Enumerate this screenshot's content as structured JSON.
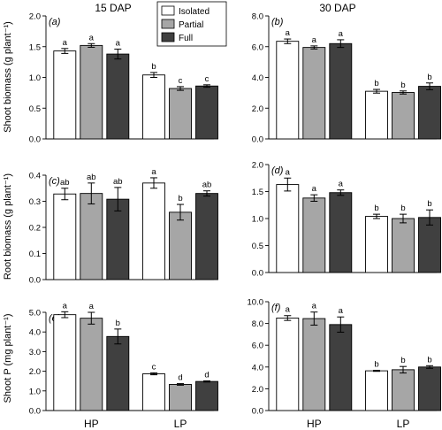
{
  "figure": {
    "col_titles": [
      "15 DAP",
      "30 DAP"
    ],
    "legend": [
      {
        "label": "Isolated",
        "color": "#ffffff"
      },
      {
        "label": "Partial",
        "color": "#a6a6a6"
      },
      {
        "label": "Full",
        "color": "#404040"
      }
    ]
  },
  "chart_data": [
    {
      "type": "bar",
      "panel": "(a)",
      "title": "15 DAP",
      "ylabel": "Shoot biomass (g plant⁻¹)",
      "categories": [
        "HP",
        "LP"
      ],
      "ylim": [
        0,
        2.0
      ],
      "yticks": [
        "0.0",
        "0.5",
        "1.0",
        "1.5",
        "2.0"
      ],
      "series": [
        {
          "name": "Isolated",
          "values": [
            1.43,
            1.04
          ],
          "errors": [
            0.04,
            0.04
          ],
          "letters": [
            "a",
            "b"
          ]
        },
        {
          "name": "Partial",
          "values": [
            1.52,
            0.82
          ],
          "errors": [
            0.03,
            0.03
          ],
          "letters": [
            "a",
            "c"
          ]
        },
        {
          "name": "Full",
          "values": [
            1.38,
            0.86
          ],
          "errors": [
            0.08,
            0.02
          ],
          "letters": [
            "a",
            "c"
          ]
        }
      ]
    },
    {
      "type": "bar",
      "panel": "(b)",
      "title": "30 DAP",
      "ylabel": "",
      "categories": [
        "HP",
        "LP"
      ],
      "ylim": [
        0,
        8.0
      ],
      "yticks": [
        "0.0",
        "2.0",
        "4.0",
        "6.0",
        "8.0"
      ],
      "series": [
        {
          "name": "Isolated",
          "values": [
            6.35,
            3.1
          ],
          "errors": [
            0.15,
            0.12
          ],
          "letters": [
            "a",
            "b"
          ]
        },
        {
          "name": "Partial",
          "values": [
            5.95,
            3.02
          ],
          "errors": [
            0.1,
            0.1
          ],
          "letters": [
            "a",
            "b"
          ]
        },
        {
          "name": "Full",
          "values": [
            6.2,
            3.42
          ],
          "errors": [
            0.25,
            0.22
          ],
          "letters": [
            "a",
            "b"
          ]
        }
      ]
    },
    {
      "type": "bar",
      "panel": "(c)",
      "title": "",
      "ylabel": "Root biomass (g plant⁻¹)",
      "categories": [
        "HP",
        "LP"
      ],
      "ylim": [
        0,
        0.4
      ],
      "yticks": [
        "0.0",
        "0.1",
        "0.2",
        "0.3",
        "0.4"
      ],
      "series": [
        {
          "name": "Isolated",
          "values": [
            0.328,
            0.37
          ],
          "errors": [
            0.022,
            0.02
          ],
          "letters": [
            "ab",
            "a"
          ]
        },
        {
          "name": "Partial",
          "values": [
            0.33,
            0.258
          ],
          "errors": [
            0.04,
            0.03
          ],
          "letters": [
            "ab",
            "b"
          ]
        },
        {
          "name": "Full",
          "values": [
            0.308,
            0.33
          ],
          "errors": [
            0.045,
            0.01
          ],
          "letters": [
            "ab",
            "ab"
          ]
        }
      ]
    },
    {
      "type": "bar",
      "panel": "(d)",
      "title": "",
      "ylabel": "",
      "categories": [
        "HP",
        "LP"
      ],
      "ylim": [
        0,
        2.0
      ],
      "yticks": [
        "0.0",
        "0.5",
        "1.0",
        "1.5",
        "2.0"
      ],
      "series": [
        {
          "name": "Isolated",
          "values": [
            1.63,
            1.04
          ],
          "errors": [
            0.12,
            0.04
          ],
          "letters": [
            "a",
            "b"
          ]
        },
        {
          "name": "Partial",
          "values": [
            1.38,
            1.0
          ],
          "errors": [
            0.06,
            0.08
          ],
          "letters": [
            "a",
            "b"
          ]
        },
        {
          "name": "Full",
          "values": [
            1.48,
            1.02
          ],
          "errors": [
            0.05,
            0.14
          ],
          "letters": [
            "a",
            "b"
          ]
        }
      ]
    },
    {
      "type": "bar",
      "panel": "(e)",
      "title": "",
      "ylabel": "Shoot P (mg plant⁻¹)",
      "categories": [
        "HP",
        "LP"
      ],
      "ylim": [
        0,
        5.0
      ],
      "yticks": [
        "0.0",
        "1.0",
        "2.0",
        "3.0",
        "4.0",
        "5.0"
      ],
      "series": [
        {
          "name": "Isolated",
          "values": [
            4.88,
            1.87
          ],
          "errors": [
            0.15,
            0.05
          ],
          "letters": [
            "a",
            "c"
          ]
        },
        {
          "name": "Partial",
          "values": [
            4.7,
            1.33
          ],
          "errors": [
            0.3,
            0.04
          ],
          "letters": [
            "a",
            "d"
          ]
        },
        {
          "name": "Full",
          "values": [
            3.77,
            1.48
          ],
          "errors": [
            0.38,
            0.03
          ],
          "letters": [
            "b",
            "d"
          ]
        }
      ]
    },
    {
      "type": "bar",
      "panel": "(f)",
      "title": "",
      "ylabel": "",
      "categories": [
        "HP",
        "LP"
      ],
      "ylim": [
        0,
        10.0
      ],
      "yticks": [
        "0.0",
        "2.0",
        "4.0",
        "6.0",
        "8.0",
        "10.0"
      ],
      "series": [
        {
          "name": "Isolated",
          "values": [
            8.5,
            3.65
          ],
          "errors": [
            0.22,
            0.05
          ],
          "letters": [
            "a",
            "b"
          ]
        },
        {
          "name": "Partial",
          "values": [
            8.45,
            3.75
          ],
          "errors": [
            0.6,
            0.3
          ],
          "letters": [
            "a",
            "b"
          ]
        },
        {
          "name": "Full",
          "values": [
            7.9,
            4.0
          ],
          "errors": [
            0.7,
            0.12
          ],
          "letters": [
            "a",
            "b"
          ]
        }
      ]
    }
  ]
}
